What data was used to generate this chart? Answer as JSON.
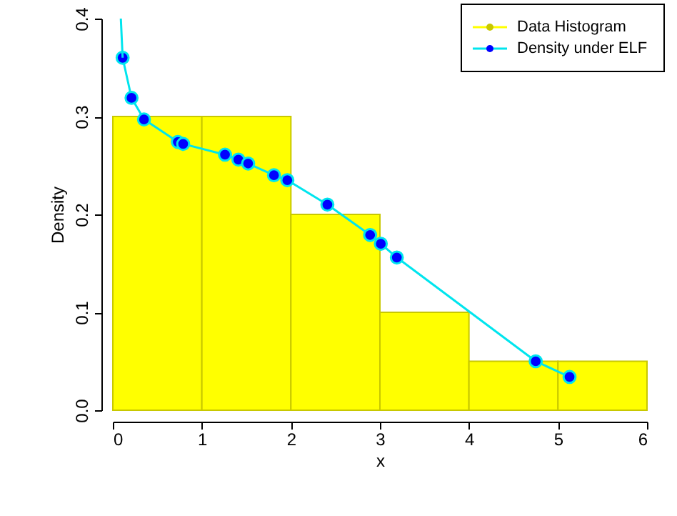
{
  "chart_data": {
    "type": "histogram",
    "xlabel": "x",
    "ylabel": "Density",
    "xlim": [
      0,
      6
    ],
    "ylim": [
      0,
      0.4
    ],
    "xticks": [
      0,
      1,
      2,
      3,
      4,
      5,
      6
    ],
    "yticks": [
      {
        "value": 0,
        "label": "0.0"
      },
      0.1,
      0.2,
      0.3,
      0.4
    ],
    "grid": false,
    "legend": "top right",
    "series": [
      {
        "name": "Data Histogram",
        "color": "#ffff00",
        "bins": [
          0,
          1,
          2,
          3,
          4,
          5,
          6
        ],
        "values": [
          0.3,
          0.3,
          0.2,
          0.1,
          0.05,
          0.05
        ]
      },
      {
        "name": "Density under ELF",
        "type": "line",
        "color": "#00e5ee",
        "marker": "circle",
        "x": [
          0.11,
          0.21,
          0.35,
          0.73,
          0.79,
          1.26,
          1.41,
          1.52,
          1.81,
          1.96,
          2.41,
          2.89,
          3.01,
          3.19,
          4.75,
          5.13
        ],
        "values": [
          0.36,
          0.319,
          0.297,
          0.274,
          0.272,
          0.261,
          0.256,
          0.252,
          0.24,
          0.235,
          0.21,
          0.179,
          0.17,
          0.156,
          0.05,
          0.034
        ]
      },
      {
        "type": "line",
        "color": "#00e5ee",
        "marker": "none",
        "x": [
          0.09,
          0.1,
          0.11
        ],
        "values": [
          0.4,
          0.38,
          0.36
        ]
      }
    ]
  }
}
